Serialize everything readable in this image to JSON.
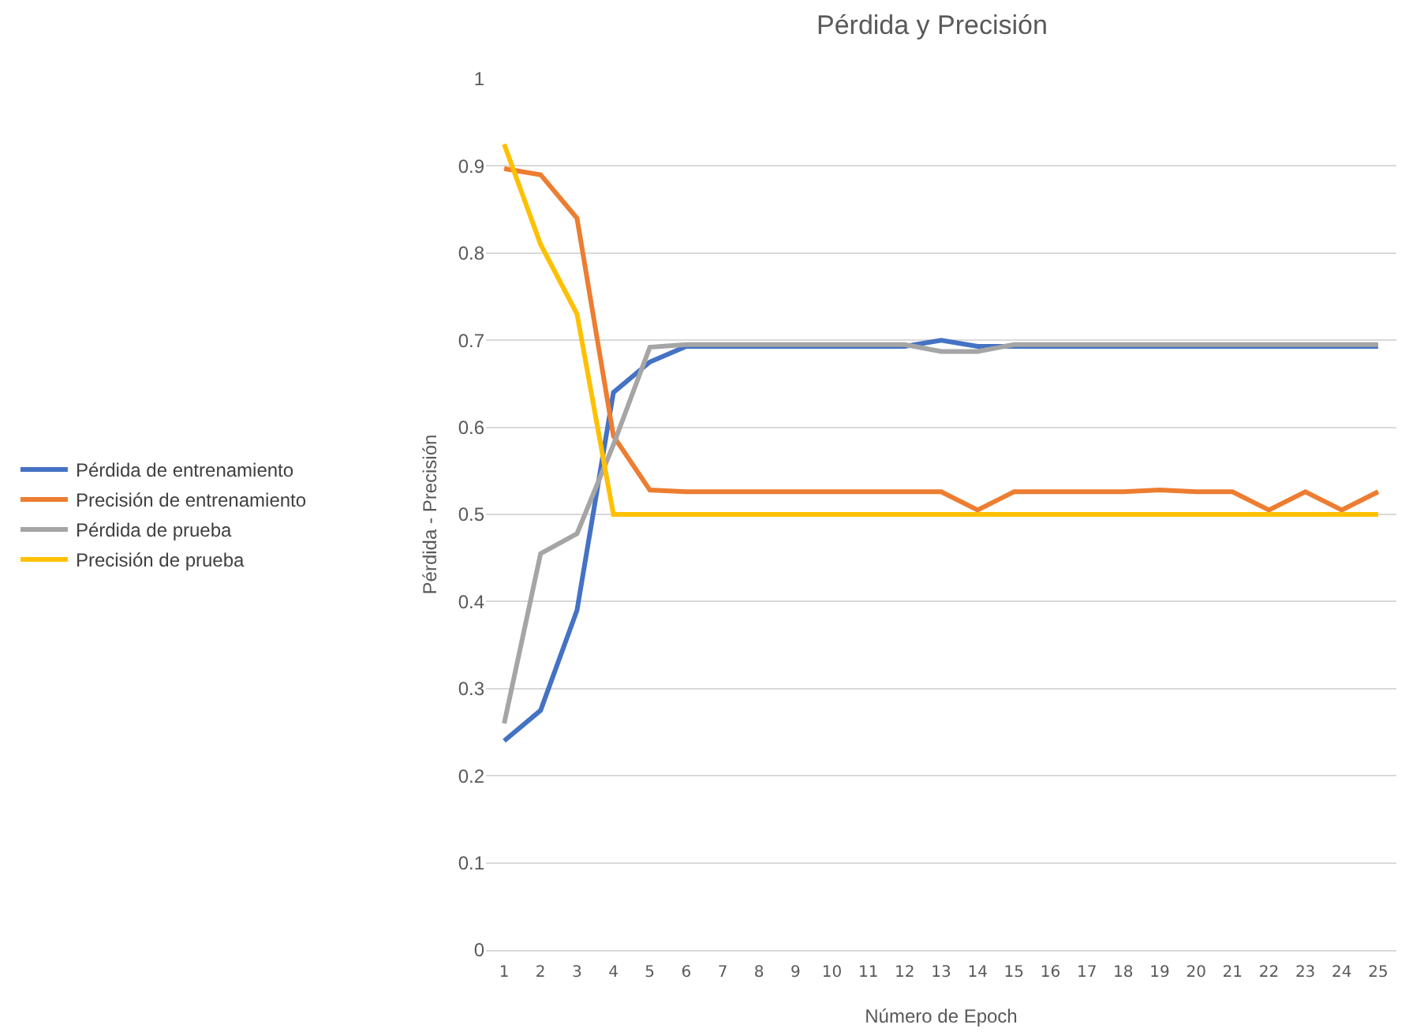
{
  "chart_data": {
    "type": "line",
    "title": "Pérdida y Precisión",
    "xlabel": "Número de Epoch",
    "ylabel": "Pérdida - Precisión",
    "x": [
      1,
      2,
      3,
      4,
      5,
      6,
      7,
      8,
      9,
      10,
      11,
      12,
      13,
      14,
      15,
      16,
      17,
      18,
      19,
      20,
      21,
      22,
      23,
      24,
      25
    ],
    "series": [
      {
        "name": "Pérdida de entrenamiento",
        "color": "#4472c4",
        "values": [
          0.24,
          0.275,
          0.39,
          0.64,
          0.675,
          0.693,
          0.693,
          0.693,
          0.693,
          0.693,
          0.693,
          0.693,
          0.7,
          0.693,
          0.693,
          0.693,
          0.693,
          0.693,
          0.693,
          0.693,
          0.693,
          0.693,
          0.693,
          0.693,
          0.693
        ]
      },
      {
        "name": "Precisión de entrenamiento",
        "color": "#ed7d31",
        "values": [
          0.897,
          0.89,
          0.84,
          0.59,
          0.528,
          0.526,
          0.526,
          0.526,
          0.526,
          0.526,
          0.526,
          0.526,
          0.526,
          0.505,
          0.526,
          0.526,
          0.526,
          0.526,
          0.528,
          0.526,
          0.526,
          0.505,
          0.526,
          0.505,
          0.526
        ]
      },
      {
        "name": "Pérdida de prueba",
        "color": "#a5a5a5",
        "values": [
          0.26,
          0.455,
          0.478,
          0.58,
          0.692,
          0.695,
          0.695,
          0.695,
          0.695,
          0.695,
          0.695,
          0.695,
          0.687,
          0.687,
          0.695,
          0.695,
          0.695,
          0.695,
          0.695,
          0.695,
          0.695,
          0.695,
          0.695,
          0.695,
          0.695
        ]
      },
      {
        "name": "Precisión de prueba",
        "color": "#ffc000",
        "values": [
          0.925,
          0.81,
          0.73,
          0.5,
          0.5,
          0.5,
          0.5,
          0.5,
          0.5,
          0.5,
          0.5,
          0.5,
          0.5,
          0.5,
          0.5,
          0.5,
          0.5,
          0.5,
          0.5,
          0.5,
          0.5,
          0.5,
          0.5,
          0.5,
          0.5
        ]
      }
    ],
    "xlim": [
      0.5,
      25.5
    ],
    "xticks": [
      1,
      2,
      3,
      4,
      5,
      6,
      7,
      8,
      9,
      10,
      11,
      12,
      13,
      14,
      15,
      16,
      17,
      18,
      19,
      20,
      21,
      22,
      23,
      24,
      25
    ],
    "ylim": [
      0,
      1
    ],
    "yticks": [
      0,
      0.1,
      0.2,
      0.3,
      0.4,
      0.5,
      0.6,
      0.7,
      0.8,
      0.9,
      1
    ],
    "grid": "y",
    "legend": "left",
    "marker": "none",
    "line_style": "solid"
  }
}
